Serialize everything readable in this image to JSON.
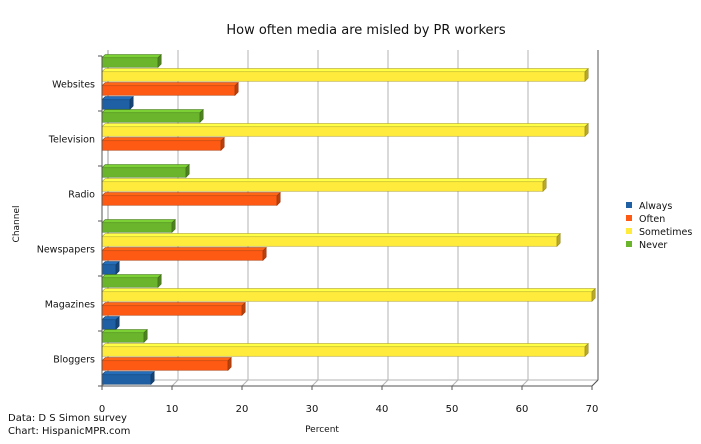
{
  "chart_data": {
    "type": "bar",
    "orientation": "horizontal",
    "title": "How often media are misled by PR workers",
    "xlabel": "Percent",
    "ylabel": "Channel",
    "xlim": [
      0,
      70
    ],
    "xticks": [
      0,
      10,
      20,
      30,
      40,
      50,
      60,
      70
    ],
    "grid": true,
    "legend_position": "right",
    "categories": [
      "Websites",
      "Television",
      "Radio",
      "Newspapers",
      "Magazines",
      "Bloggers"
    ],
    "series": [
      {
        "name": "Always",
        "color": "#1f5fa3",
        "values": [
          4,
          0,
          0,
          2,
          2,
          7
        ]
      },
      {
        "name": "Often",
        "color": "#ff5a14",
        "values": [
          19,
          17,
          25,
          23,
          20,
          18
        ]
      },
      {
        "name": "Sometimes",
        "color": "#ffeb3c",
        "values": [
          69,
          69,
          63,
          65,
          70,
          69
        ]
      },
      {
        "name": "Never",
        "color": "#6bb52c",
        "values": [
          8,
          14,
          12,
          10,
          8,
          6
        ]
      }
    ]
  },
  "credits": {
    "data_line": "Data: D S Simon survey",
    "chart_line": "Chart: HispanicMPR.com"
  }
}
